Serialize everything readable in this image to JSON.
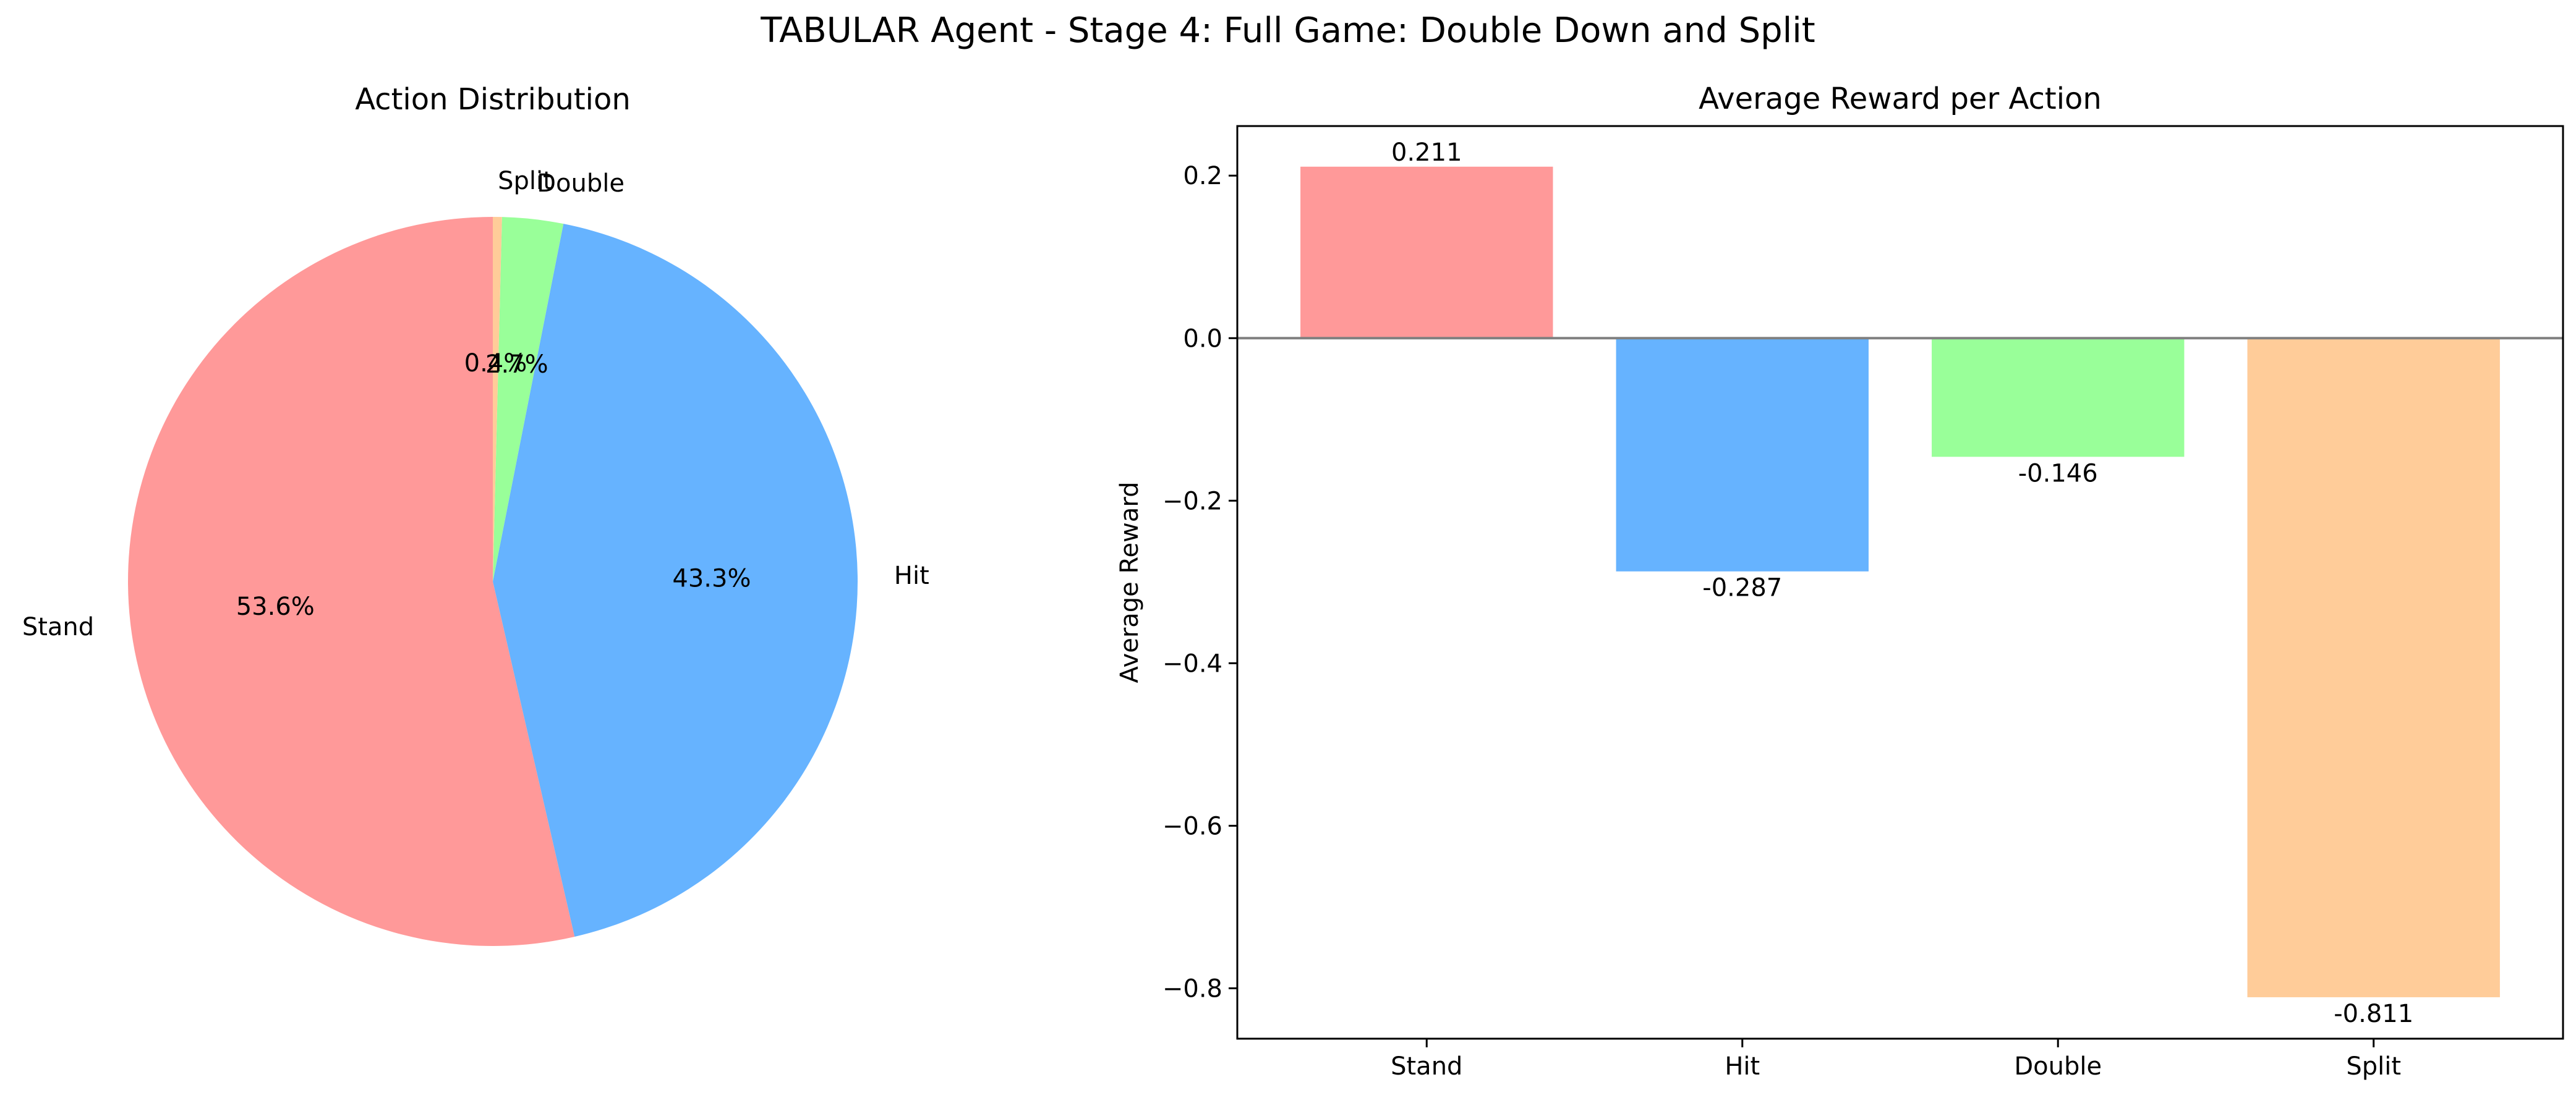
{
  "figure": {
    "suptitle": "TABULAR Agent - Stage 4: Full Game: Double Down and Split"
  },
  "chart_data": [
    {
      "type": "pie",
      "title": "Action Distribution",
      "start_angle": "90 degrees, counter-clockwise",
      "slices": [
        {
          "label": "Stand",
          "value": 53.6,
          "pct_label": "53.6%",
          "color": "#ff9999"
        },
        {
          "label": "Hit",
          "value": 43.3,
          "pct_label": "43.3%",
          "color": "#66b3ff"
        },
        {
          "label": "Double",
          "value": 2.7,
          "pct_label": "2.7%",
          "color": "#99ff99"
        },
        {
          "label": "Split",
          "value": 0.4,
          "pct_label": "0.4%",
          "color": "#ffcc99"
        }
      ]
    },
    {
      "type": "bar",
      "title": "Average Reward per Action",
      "xlabel": "",
      "ylabel": "Average Reward",
      "categories": [
        "Stand",
        "Hit",
        "Double",
        "Split"
      ],
      "values": [
        0.211,
        -0.287,
        -0.146,
        -0.811
      ],
      "value_labels": [
        "0.211",
        "-0.287",
        "-0.146",
        "-0.811"
      ],
      "colors": [
        "#ff9999",
        "#66b3ff",
        "#99ff99",
        "#ffcc99"
      ],
      "ylim": [
        -0.862,
        0.261
      ],
      "yticks": [
        0.2,
        0.0,
        -0.2,
        -0.4,
        -0.6,
        -0.8
      ],
      "ytick_labels": [
        "0.2",
        "0.0",
        "−0.2",
        "−0.4",
        "−0.6",
        "−0.8"
      ],
      "zero_line": true,
      "grid": false
    }
  ]
}
